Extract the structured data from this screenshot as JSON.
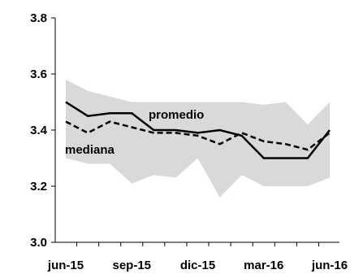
{
  "chart_data": {
    "type": "line",
    "title": "",
    "xlabel": "",
    "ylabel": "",
    "ylim": [
      3.0,
      3.8
    ],
    "y_ticks": [
      3.0,
      3.2,
      3.4,
      3.6,
      3.8
    ],
    "y_tick_labels": [
      "3.0",
      "3.2",
      "3.4",
      "3.6",
      "3.8"
    ],
    "x": [
      "jun-15",
      "jul-15",
      "ago-15",
      "sep-15",
      "oct-15",
      "nov-15",
      "dic-15",
      "ene-16",
      "feb-16",
      "mar-16",
      "abr-16",
      "may-16",
      "jun-16"
    ],
    "x_tick_labels": [
      "jun-15",
      "sep-15",
      "dic-15",
      "mar-16",
      "jun-16"
    ],
    "x_tick_positions": [
      0,
      3,
      6,
      9,
      12
    ],
    "grid": false,
    "band": {
      "color": "#d9d9d9",
      "upper": [
        3.58,
        3.54,
        3.52,
        3.5,
        3.5,
        3.5,
        3.5,
        3.5,
        3.5,
        3.49,
        3.5,
        3.42,
        3.5
      ],
      "lower": [
        3.3,
        3.28,
        3.28,
        3.21,
        3.24,
        3.23,
        3.3,
        3.16,
        3.24,
        3.2,
        3.2,
        3.2,
        3.23
      ]
    },
    "series": [
      {
        "name": "promedio",
        "color": "#000000",
        "style": "solid",
        "values": [
          3.5,
          3.45,
          3.46,
          3.46,
          3.4,
          3.4,
          3.39,
          3.4,
          3.38,
          3.3,
          3.3,
          3.3,
          3.4
        ]
      },
      {
        "name": "mediana",
        "color": "#000000",
        "style": "dashed",
        "values": [
          3.43,
          3.39,
          3.43,
          3.41,
          3.39,
          3.39,
          3.38,
          3.35,
          3.39,
          3.36,
          3.35,
          3.33,
          3.39
        ]
      }
    ]
  }
}
